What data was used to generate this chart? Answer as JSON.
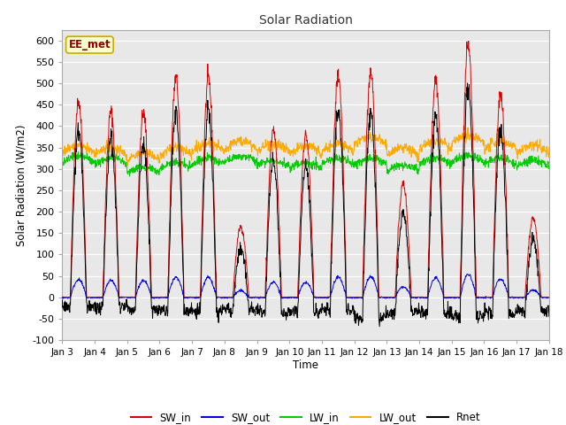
{
  "title": "Solar Radiation",
  "xlabel": "Time",
  "ylabel": "Solar Radiation (W/m2)",
  "ylim": [
    -100,
    625
  ],
  "yticks": [
    -100,
    -50,
    0,
    50,
    100,
    150,
    200,
    250,
    300,
    350,
    400,
    450,
    500,
    550,
    600
  ],
  "xtick_labels": [
    "Jan 3",
    "Jan 4",
    "Jan 5",
    "Jan 6",
    "Jan 7",
    "Jan 8",
    "Jan 9",
    "Jan 10",
    "Jan 11",
    "Jan 12",
    "Jan 13",
    "Jan 14",
    "Jan 15",
    "Jan 16",
    "Jan 17",
    "Jan 18"
  ],
  "colors": {
    "SW_in": "#dd0000",
    "SW_out": "#0000ee",
    "LW_in": "#00cc00",
    "LW_out": "#ffaa00",
    "Rnet": "#000000"
  },
  "legend_label": "EE_met",
  "fig_bg_color": "#ffffff",
  "plot_bg_color": "#e8e8e8",
  "grid_color": "#ffffff",
  "num_days": 15,
  "points_per_day": 96
}
